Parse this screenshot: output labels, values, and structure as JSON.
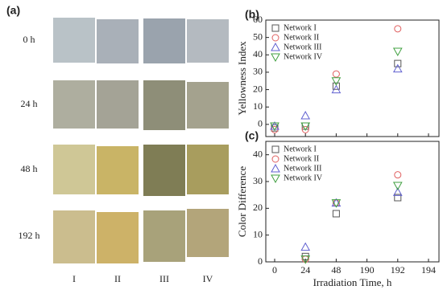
{
  "photo_panel": {
    "label": "(a)",
    "rows": [
      "0 h",
      "24 h",
      "48 h",
      "192 h"
    ],
    "columns": [
      "I",
      "II",
      "III",
      "IV"
    ]
  },
  "chart_data": [
    {
      "type": "scatter",
      "panel_label": "(b)",
      "y_label": "Yellowness Index",
      "x": [
        0,
        24,
        48,
        192
      ],
      "xticks": [
        0,
        24,
        48,
        190,
        192,
        194
      ],
      "show_xtick_labels": false,
      "ylim": [
        -7,
        60
      ],
      "yticks": [
        0,
        10,
        20,
        30,
        40,
        50,
        60
      ],
      "series": [
        {
          "name": "Network I",
          "color": "#555555",
          "marker": "square",
          "values": [
            -2,
            -1,
            22,
            35
          ]
        },
        {
          "name": "Network II",
          "color": "#e06060",
          "marker": "circle",
          "values": [
            -3,
            -3,
            29,
            55
          ]
        },
        {
          "name": "Network III",
          "color": "#6060d0",
          "marker": "triangle-up",
          "values": [
            -1,
            5,
            20,
            32
          ]
        },
        {
          "name": "Network IV",
          "color": "#40a040",
          "marker": "triangle-down",
          "values": [
            -1,
            -1,
            25,
            42
          ]
        }
      ]
    },
    {
      "type": "scatter",
      "panel_label": "(c)",
      "y_label": "Color Difference",
      "x_label": "Irradiation Time, h",
      "x": [
        0,
        24,
        48,
        192
      ],
      "xticks": [
        0,
        24,
        48,
        190,
        192,
        194
      ],
      "show_xtick_labels": true,
      "ylim": [
        0,
        45
      ],
      "yticks": [
        0,
        10,
        20,
        30,
        40
      ],
      "series": [
        {
          "name": "Network I",
          "color": "#555555",
          "marker": "square",
          "values": [
            null,
            2,
            18,
            24
          ]
        },
        {
          "name": "Network II",
          "color": "#e06060",
          "marker": "circle",
          "values": [
            null,
            1,
            22,
            32.5
          ]
        },
        {
          "name": "Network III",
          "color": "#6060d0",
          "marker": "triangle-up",
          "values": [
            null,
            5.5,
            22,
            26
          ]
        },
        {
          "name": "Network IV",
          "color": "#40a040",
          "marker": "triangle-down",
          "values": [
            null,
            1,
            22,
            28.5
          ]
        }
      ]
    }
  ]
}
